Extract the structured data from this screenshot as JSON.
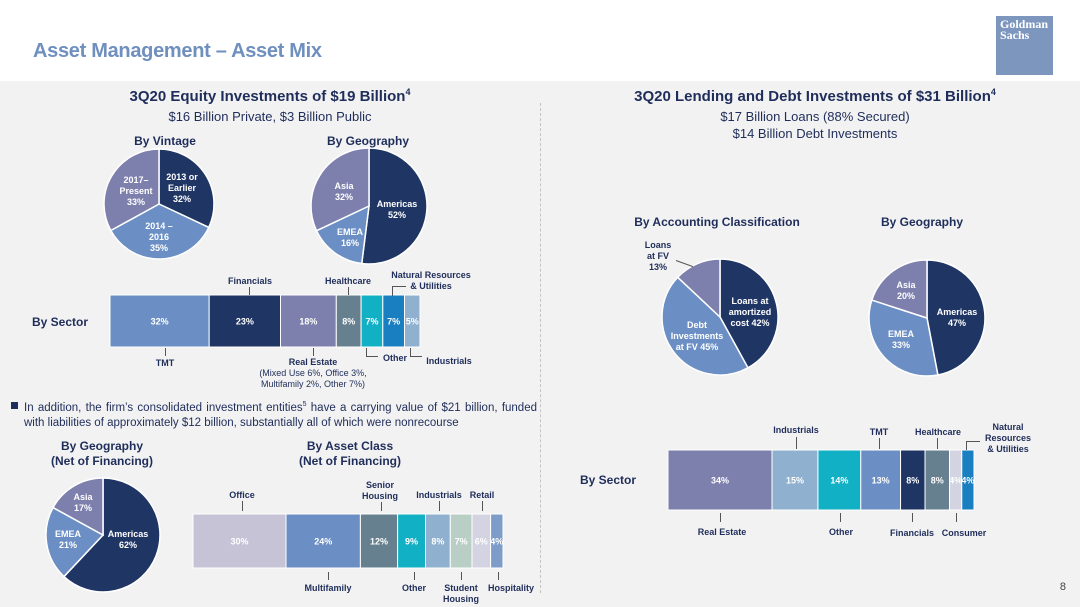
{
  "header": {
    "title": "Asset Management – Asset Mix",
    "logo_text": "Goldman Sachs",
    "page_number": "8"
  },
  "left": {
    "title": "3Q20 Equity Investments of $19 Billion",
    "title_sup": "4",
    "subtitle": "$16 Billion Private, $3 Billion Public",
    "note": "In addition, the firm’s consolidated investment entities",
    "note_sup": "5",
    "note_rest": " have a carrying value of $21 billion, funded with liabilities of approximately $12 billion, substantially all of which were nonrecourse"
  },
  "right": {
    "title": "3Q20 Lending and Debt Investments of $31 Billion",
    "title_sup": "4",
    "subtitle_1": "$17 Billion Loans (88% Secured)",
    "subtitle_2": "$14 Billion Debt Investments"
  },
  "chart_data": [
    {
      "id": "equity_vintage",
      "type": "pie",
      "title": "By Vintage",
      "slices": [
        {
          "label": "2013 or Earlier",
          "value": 32,
          "text": "32%",
          "color": "#1f3564"
        },
        {
          "label": "2014 – 2016",
          "value": 35,
          "text": "35%",
          "color": "#6b8fc4"
        },
        {
          "label": "2017– Present",
          "value": 33,
          "text": "33%",
          "color": "#7d7fad"
        }
      ]
    },
    {
      "id": "equity_geo",
      "type": "pie",
      "title": "By Geography",
      "slices": [
        {
          "label": "Americas",
          "value": 52,
          "text": "52%",
          "color": "#1f3564"
        },
        {
          "label": "EMEA",
          "value": 16,
          "text": "16%",
          "color": "#6b8fc4"
        },
        {
          "label": "Asia",
          "value": 32,
          "text": "32%",
          "color": "#7d7fad"
        }
      ]
    },
    {
      "id": "equity_sector",
      "type": "bar",
      "orientation": "stacked-horizontal",
      "title": "By Sector",
      "segments": [
        {
          "label": "TMT",
          "value": 32,
          "text": "32%",
          "color": "#6b8fc4"
        },
        {
          "label": "Financials",
          "value": 23,
          "text": "23%",
          "color": "#1f3564"
        },
        {
          "label": "Real Estate",
          "value": 18,
          "text": "18%",
          "color": "#7d7fad"
        },
        {
          "label": "Healthcare",
          "value": 8,
          "text": "8%",
          "color": "#66808f"
        },
        {
          "label": "Other",
          "value": 7,
          "text": "7%",
          "color": "#11b0c4"
        },
        {
          "label": "Natural Resources & Utilities",
          "value": 7,
          "text": "7%",
          "color": "#1a7fc0"
        },
        {
          "label": "Industrials",
          "value": 5,
          "text": "5%",
          "color": "#8fb0cf"
        }
      ],
      "callouts": {
        "top_financials": "Financials",
        "top_healthcare": "Healthcare",
        "top_natres": "Natural Resources & Utilities",
        "bot_tmt": "TMT",
        "bot_realestate": "Real Estate",
        "bot_realestate_detail_1": "(Mixed Use 6%, Office 3%,",
        "bot_realestate_detail_2": "Multifamily 2%, Other 7%)",
        "bot_other": "Other",
        "bot_industrials": "Industrials"
      }
    },
    {
      "id": "equity_geo_net",
      "type": "pie",
      "title": "By Geography",
      "subtitle": "(Net of Financing)",
      "slices": [
        {
          "label": "Americas",
          "value": 62,
          "text": "62%",
          "color": "#1f3564"
        },
        {
          "label": "EMEA",
          "value": 21,
          "text": "21%",
          "color": "#6b8fc4"
        },
        {
          "label": "Asia",
          "value": 17,
          "text": "17%",
          "color": "#7d7fad"
        }
      ]
    },
    {
      "id": "equity_asset_class",
      "type": "bar",
      "orientation": "stacked-horizontal",
      "title": "By Asset Class",
      "subtitle": "(Net of Financing)",
      "segments": [
        {
          "label": "Office",
          "value": 30,
          "text": "30%",
          "color": "#c6c3d6"
        },
        {
          "label": "Multifamily",
          "value": 24,
          "text": "24%",
          "color": "#6b8fc4"
        },
        {
          "label": "Senior Housing",
          "value": 12,
          "text": "12%",
          "color": "#66808f"
        },
        {
          "label": "Other",
          "value": 9,
          "text": "9%",
          "color": "#11b0c4"
        },
        {
          "label": "Industrials",
          "value": 8,
          "text": "8%",
          "color": "#8fb0cf"
        },
        {
          "label": "Student Housing",
          "value": 7,
          "text": "7%",
          "color": "#b9cec5"
        },
        {
          "label": "Retail",
          "value": 6,
          "text": "6%",
          "color": "#d4d3e1"
        },
        {
          "label": "Hospitality",
          "value": 4,
          "text": "4%",
          "color": "#7e9cc8"
        }
      ],
      "callouts": {
        "top_office": "Office",
        "top_senior": "Senior Housing",
        "top_industrials": "Industrials",
        "top_retail": "Retail",
        "bot_multifamily": "Multifamily",
        "bot_other": "Other",
        "bot_student": "Student Housing",
        "bot_hospitality": "Hospitality"
      }
    },
    {
      "id": "debt_accounting",
      "type": "pie",
      "title": "By Accounting Classification",
      "slices": [
        {
          "label": "Loans at amortized cost",
          "value": 42,
          "text": "42%",
          "color": "#1f3564"
        },
        {
          "label": "Debt Investments at FV",
          "value": 45,
          "text": "45%",
          "color": "#6b8fc4"
        },
        {
          "label": "Loans at FV",
          "value": 13,
          "text": "13%",
          "color": "#7d7fad"
        }
      ]
    },
    {
      "id": "debt_geo",
      "type": "pie",
      "title": "By Geography",
      "slices": [
        {
          "label": "Americas",
          "value": 47,
          "text": "47%",
          "color": "#1f3564"
        },
        {
          "label": "EMEA",
          "value": 33,
          "text": "33%",
          "color": "#6b8fc4"
        },
        {
          "label": "Asia",
          "value": 20,
          "text": "20%",
          "color": "#7d7fad"
        }
      ]
    },
    {
      "id": "debt_sector",
      "type": "bar",
      "orientation": "stacked-horizontal",
      "title": "By Sector",
      "segments": [
        {
          "label": "Real Estate",
          "value": 34,
          "text": "34%",
          "color": "#7d7fad"
        },
        {
          "label": "Industrials",
          "value": 15,
          "text": "15%",
          "color": "#8fb0cf"
        },
        {
          "label": "Other",
          "value": 14,
          "text": "14%",
          "color": "#11b0c4"
        },
        {
          "label": "TMT",
          "value": 13,
          "text": "13%",
          "color": "#6b8fc4"
        },
        {
          "label": "Financials",
          "value": 8,
          "text": "8%",
          "color": "#1f3564"
        },
        {
          "label": "Healthcare",
          "value": 8,
          "text": "8%",
          "color": "#66808f"
        },
        {
          "label": "Consumer",
          "value": 4,
          "text": "4%",
          "color": "#d4d3e1"
        },
        {
          "label": "Natural Resources & Utilities",
          "value": 4,
          "text": "4%",
          "color": "#1a7fc0"
        }
      ],
      "callouts": {
        "top_industrials": "Industrials",
        "top_tmt": "TMT",
        "top_healthcare": "Healthcare",
        "top_natres": "Natural Resources & Utilities",
        "bot_realestate": "Real Estate",
        "bot_other": "Other",
        "bot_financials": "Financials",
        "bot_consumer": "Consumer"
      }
    }
  ]
}
